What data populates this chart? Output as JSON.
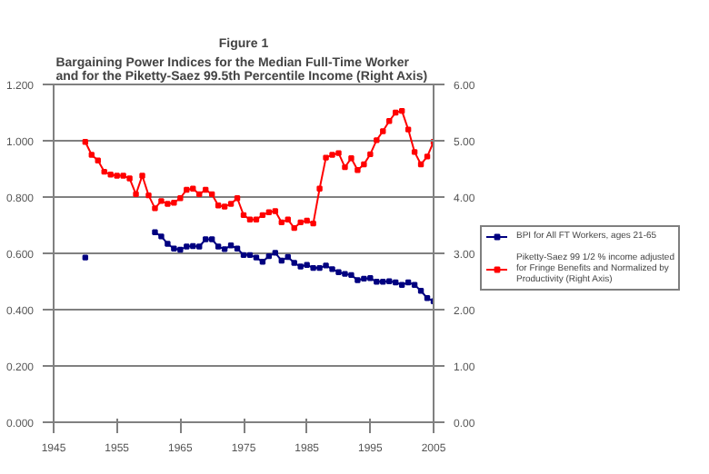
{
  "chart_data": {
    "type": "line",
    "title": "Figure 1",
    "subtitle": "Bargaining Power Indices for the Median Full-Time Worker\nand for the  Piketty-Saez 99.5th Percentile Income (Right Axis)",
    "xlim": [
      1945,
      2005
    ],
    "xticks": [
      1945,
      1955,
      1965,
      1975,
      1985,
      1995,
      2005
    ],
    "ylim": [
      0,
      1.2
    ],
    "yticks": [
      {
        "value": 0,
        "label": "0.000"
      },
      {
        "value": 0.2,
        "label": "0.200"
      },
      {
        "value": 0.4,
        "label": "0.400"
      },
      {
        "value": 0.6,
        "label": "0.600"
      },
      {
        "value": 0.8,
        "label": "0.800"
      },
      {
        "value": 1.0,
        "label": "1.000"
      },
      {
        "value": 1.2,
        "label": "1.200"
      }
    ],
    "y2lim": [
      0,
      6
    ],
    "y2ticks": [
      {
        "value": 0,
        "label": "0.00"
      },
      {
        "value": 1,
        "label": "1.00"
      },
      {
        "value": 2,
        "label": "2.00"
      },
      {
        "value": 3,
        "label": "3.00"
      },
      {
        "value": 4,
        "label": "4.00"
      },
      {
        "value": 5,
        "label": "5.00"
      },
      {
        "value": 6,
        "label": "6.00"
      }
    ],
    "grid": "y",
    "legend": "right",
    "marker": "square",
    "line_style": "solid",
    "series": [
      {
        "name": "BPI for All FT Workers, ages 21-65",
        "color": "#000080",
        "x": [
          1950,
          1960,
          1961,
          1962,
          1963,
          1964,
          1965,
          1966,
          1967,
          1968,
          1969,
          1970,
          1971,
          1972,
          1973,
          1974,
          1975,
          1976,
          1977,
          1978,
          1979,
          1980,
          1981,
          1982,
          1983,
          1984,
          1985,
          1986,
          1987,
          1988,
          1989,
          1990,
          1991,
          1992,
          1993,
          1994,
          1995,
          1996,
          1997,
          1998,
          1999,
          2000,
          2001,
          2002,
          2003,
          2004,
          2005
        ],
        "values": [
          0.585,
          null,
          0.675,
          0.66,
          0.634,
          0.617,
          0.613,
          0.624,
          0.626,
          0.624,
          0.65,
          0.65,
          0.624,
          0.615,
          0.628,
          0.617,
          0.594,
          0.594,
          0.585,
          0.57,
          0.59,
          0.602,
          0.574,
          0.587,
          0.566,
          0.553,
          0.559,
          0.548,
          0.548,
          0.557,
          0.544,
          0.533,
          0.527,
          0.523,
          0.505,
          0.51,
          0.512,
          0.499,
          0.499,
          0.501,
          0.497,
          0.488,
          0.497,
          0.488,
          0.467,
          0.441,
          0.43
        ]
      },
      {
        "name": "Piketty-Saez 99 1/2 % income adjusted for Fringe Benefits and Normalized by Productivity (Right Axis)",
        "color": "#ff0000",
        "axis": "y2",
        "x": [
          1950,
          1951,
          1952,
          1953,
          1954,
          1955,
          1956,
          1957,
          1958,
          1959,
          1960,
          1961,
          1962,
          1963,
          1964,
          1965,
          1966,
          1967,
          1968,
          1969,
          1970,
          1971,
          1972,
          1973,
          1974,
          1975,
          1976,
          1977,
          1978,
          1979,
          1980,
          1981,
          1982,
          1983,
          1984,
          1985,
          1986,
          1987,
          1988,
          1989,
          1990,
          1991,
          1992,
          1993,
          1994,
          1995,
          1996,
          1997,
          1998,
          1999,
          2000,
          2001,
          2002,
          2003,
          2004,
          2005
        ],
        "values": [
          4.98,
          4.75,
          4.65,
          4.45,
          4.4,
          4.38,
          4.38,
          4.33,
          4.05,
          4.38,
          4.03,
          3.8,
          3.93,
          3.88,
          3.9,
          3.98,
          4.13,
          4.15,
          4.05,
          4.13,
          4.05,
          3.85,
          3.83,
          3.88,
          3.98,
          3.68,
          3.6,
          3.6,
          3.68,
          3.73,
          3.75,
          3.55,
          3.6,
          3.45,
          3.55,
          3.58,
          3.53,
          4.15,
          4.7,
          4.75,
          4.78,
          4.53,
          4.69,
          4.48,
          4.58,
          4.76,
          5.01,
          5.17,
          5.35,
          5.5,
          5.53,
          5.2,
          4.8,
          4.58,
          4.72,
          4.98
        ]
      }
    ]
  }
}
